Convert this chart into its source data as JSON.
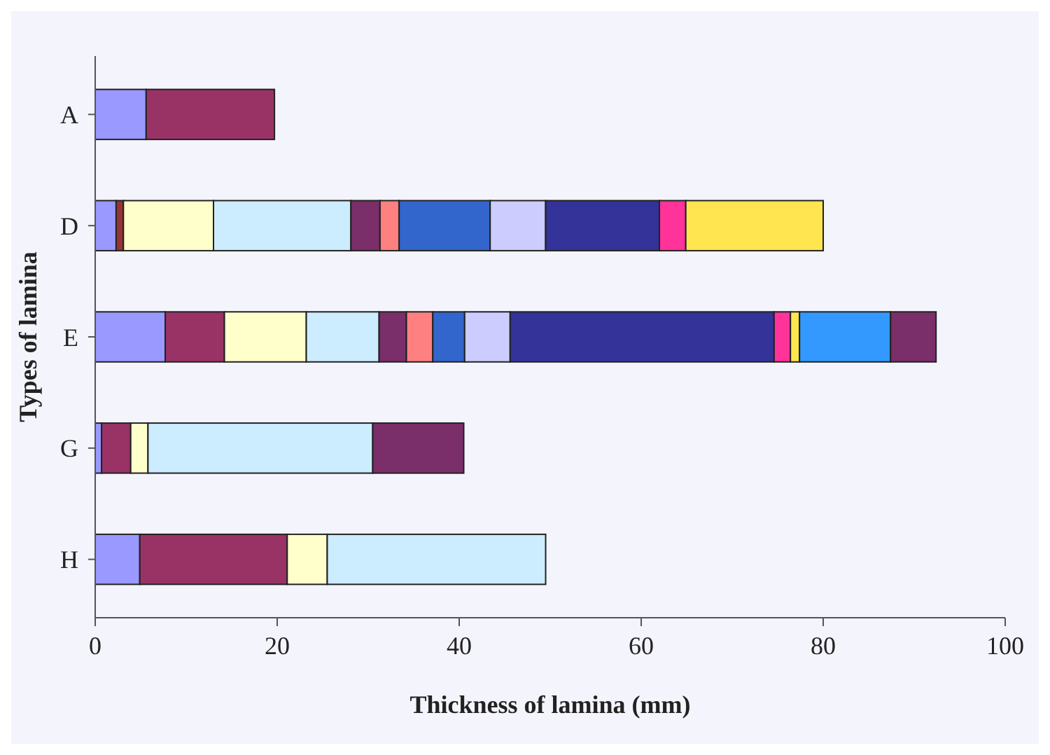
{
  "chart_data": {
    "type": "bar",
    "orientation": "horizontal",
    "stacked": true,
    "xlabel": "Thickness of lamina (mm)",
    "ylabel": "Types of lamina",
    "categories": [
      "A",
      "D",
      "E",
      "G",
      "H"
    ],
    "xlim": [
      0,
      100
    ],
    "xticks": [
      0,
      20,
      40,
      60,
      80,
      100
    ],
    "series": [
      {
        "values": [
          5.6,
          2.3,
          7.7,
          0.7,
          4.9
        ],
        "colors": [
          "#9999ff",
          "#9999ff",
          "#9999ff",
          "#9999ff",
          "#9999ff"
        ]
      },
      {
        "values": [
          14.1,
          0.8,
          6.5,
          3.2,
          16.2
        ],
        "colors": [
          "#993366",
          "#993333",
          "#993366",
          "#993366",
          "#993366"
        ]
      },
      {
        "values": [
          null,
          9.9,
          9.0,
          1.9,
          4.4
        ],
        "colors": [
          null,
          "#ffffcc",
          "#ffffcc",
          "#ffffcc",
          "#ffffcc"
        ]
      },
      {
        "values": [
          null,
          15.1,
          8.0,
          24.7,
          24.0
        ],
        "colors": [
          null,
          "#ccecff",
          "#ccecff",
          "#ccecff",
          "#ccecff"
        ]
      },
      {
        "values": [
          null,
          3.2,
          3.0,
          10.0,
          null
        ],
        "colors": [
          null,
          "#7a2e6a",
          "#7a2e6a",
          "#7a2e6a",
          null
        ]
      },
      {
        "values": [
          null,
          2.1,
          2.9,
          null,
          null
        ],
        "colors": [
          null,
          "#ff8080",
          "#ff8080",
          null,
          null
        ]
      },
      {
        "values": [
          null,
          10.0,
          3.5,
          null,
          null
        ],
        "colors": [
          null,
          "#3366cc",
          "#3366cc",
          null,
          null
        ]
      },
      {
        "values": [
          null,
          6.1,
          5.0,
          null,
          null
        ],
        "colors": [
          null,
          "#ccccff",
          "#ccccff",
          null,
          null
        ]
      },
      {
        "values": [
          null,
          12.5,
          29.0,
          null,
          null
        ],
        "colors": [
          null,
          "#333399",
          "#333399",
          null,
          null
        ]
      },
      {
        "values": [
          null,
          2.9,
          1.8,
          null,
          null
        ],
        "colors": [
          null,
          "#ff3399",
          "#ff3399",
          null,
          null
        ]
      },
      {
        "values": [
          null,
          15.1,
          1.0,
          null,
          null
        ],
        "colors": [
          null,
          "#ffe650",
          "#ffe650",
          null,
          null
        ]
      },
      {
        "values": [
          null,
          null,
          10.0,
          null,
          null
        ],
        "colors": [
          null,
          null,
          "#3399ff",
          null,
          null
        ]
      },
      {
        "values": [
          null,
          null,
          5.0,
          null,
          null
        ],
        "colors": [
          null,
          null,
          "#7a2e6a",
          null,
          null
        ]
      }
    ]
  }
}
